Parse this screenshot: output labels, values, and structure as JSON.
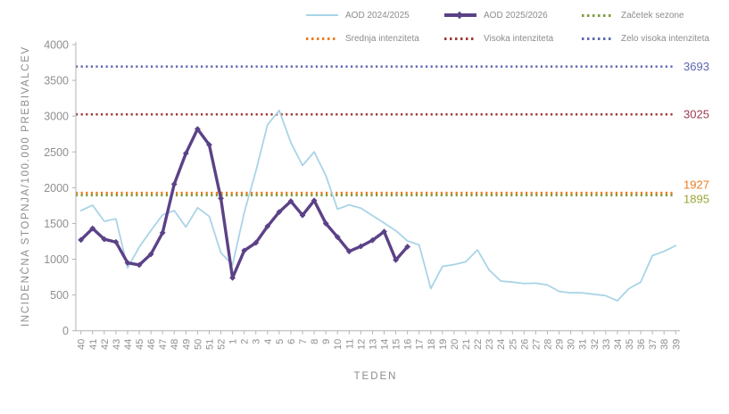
{
  "chart_data": {
    "type": "line",
    "title": "",
    "xlabel": "TEDEN",
    "ylabel": "INCIDENČNA STOPNJA/100.000 PREBIVALCEV",
    "ylim": [
      0,
      4000
    ],
    "ytick_step": 500,
    "grid": false,
    "legend_position": "top",
    "x_categories": [
      "40",
      "41",
      "42",
      "43",
      "44",
      "45",
      "46",
      "47",
      "48",
      "49",
      "50",
      "51",
      "52",
      "1",
      "2",
      "3",
      "4",
      "5",
      "6",
      "7",
      "8",
      "9",
      "10",
      "11",
      "12",
      "13",
      "14",
      "15",
      "16",
      "17",
      "18",
      "19",
      "20",
      "21",
      "22",
      "23",
      "24",
      "25",
      "26",
      "27",
      "28",
      "29",
      "30",
      "31",
      "32",
      "33",
      "34",
      "35",
      "36",
      "37",
      "38",
      "39"
    ],
    "series": [
      {
        "name": "AOD 2024/2025",
        "color": "#A9D4E6",
        "stroke_width": 1.8,
        "marker": false,
        "values": [
          1680,
          1755,
          1530,
          1565,
          880,
          1170,
          1400,
          1620,
          1680,
          1450,
          1720,
          1600,
          1090,
          920,
          1650,
          2230,
          2880,
          3080,
          2630,
          2310,
          2500,
          2170,
          1700,
          1760,
          1715,
          1610,
          1505,
          1400,
          1255,
          1200,
          590,
          900,
          925,
          965,
          1130,
          850,
          695,
          680,
          660,
          665,
          640,
          550,
          530,
          530,
          510,
          490,
          420,
          590,
          680,
          1050,
          1110,
          1190
        ]
      },
      {
        "name": "AOD 2025/2026",
        "color": "#5B4287",
        "stroke_width": 3.4,
        "marker": true,
        "values": [
          1270,
          1430,
          1280,
          1240,
          950,
          920,
          1070,
          1370,
          2050,
          2480,
          2820,
          2600,
          1850,
          740,
          1120,
          1230,
          1460,
          1660,
          1810,
          1615,
          1820,
          1500,
          1310,
          1110,
          1180,
          1265,
          1385,
          990,
          1175
        ]
      }
    ],
    "thresholds": [
      {
        "name": "Zelo visoka intenziteta",
        "value": 3693,
        "line_color": "#5C66AE",
        "label_color": "#5C66AE"
      },
      {
        "name": "Visoka intenziteta",
        "value": 3025,
        "line_color": "#9E3A38",
        "label_color": "#A03A50"
      },
      {
        "name": "Srednja intenziteta",
        "value": 1927,
        "line_color": "#EE7D22",
        "label_color": "#EE7D22"
      },
      {
        "name": "Začetek sezone",
        "value": 1895,
        "line_color": "#7E9C3C",
        "label_color": "#9AA437"
      }
    ]
  },
  "legend": {
    "items": [
      {
        "label": "AOD 2024/2025",
        "swatch": "line",
        "color": "#A9D4E6"
      },
      {
        "label": "AOD 2025/2026",
        "swatch": "line-marker",
        "color": "#5B4287"
      },
      {
        "label": "Začetek sezone",
        "swatch": "dots",
        "color": "#7E9C3C"
      },
      {
        "label": "Srednja intenziteta",
        "swatch": "dots",
        "color": "#EE7D22"
      },
      {
        "label": "Visoka intenziteta",
        "swatch": "dots",
        "color": "#9E3A38"
      },
      {
        "label": "Zelo visoka intenziteta",
        "swatch": "dots",
        "color": "#5D68B0"
      }
    ]
  }
}
